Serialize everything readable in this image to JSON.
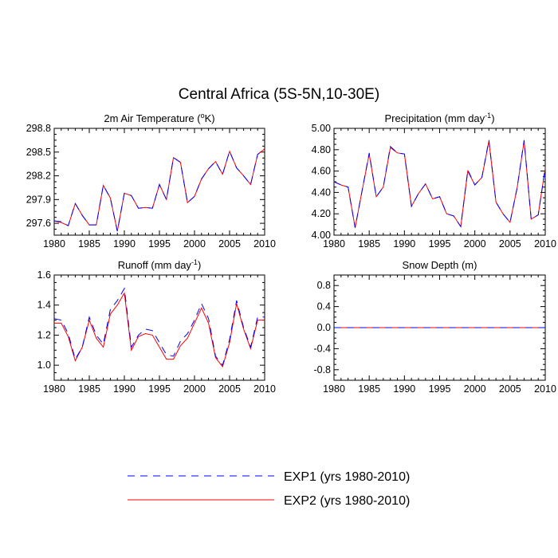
{
  "title": "Central Africa (5S-5N,10-30E)",
  "legend": [
    {
      "label": "EXP1 (yrs 1980-2010)",
      "color": "#0000ff",
      "dash": "dashed"
    },
    {
      "label": "EXP2 (yrs 1980-2010)",
      "color": "#ff0000",
      "dash": "solid"
    }
  ],
  "chart_data": [
    {
      "type": "line",
      "title": "2m Air Temperature (°K)",
      "title_main": "2m Air Temperature (",
      "title_sup": "o",
      "title_end": "K)",
      "xlim": [
        1980,
        2010
      ],
      "ylim": [
        297.45,
        298.8
      ],
      "xticks": [
        1980,
        1985,
        1990,
        1995,
        2000,
        2005,
        2010
      ],
      "xtick_labels": [
        "1980",
        "1985",
        "1990",
        "1995",
        "2000",
        "2005",
        "2010"
      ],
      "yticks": [
        297.6,
        297.9,
        298.2,
        298.5,
        298.8
      ],
      "ytick_labels": [
        "297.6",
        "297.9",
        "298.2",
        "298.5",
        "298.8"
      ],
      "x": [
        1980,
        1981,
        1982,
        1983,
        1984,
        1985,
        1986,
        1987,
        1988,
        1989,
        1990,
        1991,
        1992,
        1993,
        1994,
        1995,
        1996,
        1997,
        1998,
        1999,
        2000,
        2001,
        2002,
        2003,
        2004,
        2005,
        2006,
        2007,
        2008,
        2009,
        2010
      ],
      "series": [
        {
          "name": "EXP1 (yrs 1980-2010)",
          "values": [
            297.63,
            297.62,
            297.57,
            297.85,
            297.7,
            297.58,
            297.58,
            298.08,
            297.92,
            297.5,
            297.98,
            297.95,
            297.79,
            297.8,
            297.79,
            298.09,
            297.9,
            298.43,
            298.37,
            297.86,
            297.94,
            298.16,
            298.29,
            298.38,
            298.22,
            298.51,
            298.3,
            298.2,
            298.09,
            298.47,
            298.54
          ]
        },
        {
          "name": "EXP2 (yrs 1980-2010)",
          "values": [
            297.63,
            297.61,
            297.57,
            297.85,
            297.7,
            297.58,
            297.58,
            298.08,
            297.92,
            297.5,
            297.98,
            297.95,
            297.79,
            297.8,
            297.79,
            298.09,
            297.9,
            298.43,
            298.37,
            297.86,
            297.94,
            298.16,
            298.29,
            298.38,
            298.22,
            298.51,
            298.3,
            298.2,
            298.09,
            298.47,
            298.54
          ]
        }
      ]
    },
    {
      "type": "line",
      "title": "Precipitation (mm day-1)",
      "title_main": "Precipitation (mm day",
      "title_sup": "-1",
      "title_end": ")",
      "xlim": [
        1980,
        2010
      ],
      "ylim": [
        4.0,
        5.0
      ],
      "xticks": [
        1980,
        1985,
        1990,
        1995,
        2000,
        2005,
        2010
      ],
      "xtick_labels": [
        "1980",
        "1985",
        "1990",
        "1995",
        "2000",
        "2005",
        "2010"
      ],
      "yticks": [
        4.0,
        4.2,
        4.4,
        4.6,
        4.8,
        5.0
      ],
      "ytick_labels": [
        "4.00",
        "4.20",
        "4.40",
        "4.60",
        "4.80",
        "5.00"
      ],
      "x": [
        1980,
        1981,
        1982,
        1983,
        1984,
        1985,
        1986,
        1987,
        1988,
        1989,
        1990,
        1991,
        1992,
        1993,
        1994,
        1995,
        1996,
        1997,
        1998,
        1999,
        2000,
        2001,
        2002,
        2003,
        2004,
        2005,
        2006,
        2007,
        2008,
        2009,
        2010
      ],
      "series": [
        {
          "name": "EXP1 (yrs 1980-2010)",
          "values": [
            4.5,
            4.47,
            4.45,
            4.07,
            4.42,
            4.77,
            4.36,
            4.45,
            4.83,
            4.77,
            4.76,
            4.27,
            4.39,
            4.48,
            4.34,
            4.36,
            4.2,
            4.18,
            4.08,
            4.61,
            4.47,
            4.54,
            4.89,
            4.31,
            4.2,
            4.12,
            4.44,
            4.89,
            4.15,
            4.19,
            4.63
          ]
        },
        {
          "name": "EXP2 (yrs 1980-2010)",
          "values": [
            4.5,
            4.47,
            4.45,
            4.07,
            4.42,
            4.76,
            4.36,
            4.45,
            4.82,
            4.77,
            4.76,
            4.27,
            4.39,
            4.48,
            4.34,
            4.36,
            4.2,
            4.18,
            4.08,
            4.6,
            4.47,
            4.54,
            4.88,
            4.31,
            4.2,
            4.12,
            4.44,
            4.88,
            4.15,
            4.19,
            4.63
          ]
        }
      ]
    },
    {
      "type": "line",
      "title": "Runoff (mm day-1)",
      "title_main": "Runoff (mm day",
      "title_sup": "-1",
      "title_end": ")",
      "xlim": [
        1980,
        2010
      ],
      "ylim": [
        0.9,
        1.6
      ],
      "xticks": [
        1980,
        1985,
        1990,
        1995,
        2000,
        2005,
        2010
      ],
      "xtick_labels": [
        "1980",
        "1985",
        "1990",
        "1995",
        "2000",
        "2005",
        "2010"
      ],
      "yticks": [
        1.0,
        1.2,
        1.4,
        1.6
      ],
      "ytick_labels": [
        "1.0",
        "1.2",
        "1.4",
        "1.6"
      ],
      "x": [
        1980,
        1981,
        1982,
        1983,
        1984,
        1985,
        1986,
        1987,
        1988,
        1989,
        1990,
        1991,
        1992,
        1993,
        1994,
        1995,
        1996,
        1997,
        1998,
        1999,
        2000,
        2001,
        2002,
        2003,
        2004,
        2005,
        2006,
        2007,
        2008,
        2009,
        2010
      ],
      "series": [
        {
          "name": "EXP1 (yrs 1980-2010)",
          "values": [
            1.31,
            1.3,
            1.21,
            1.04,
            1.12,
            1.32,
            1.2,
            1.14,
            1.37,
            1.43,
            1.51,
            1.12,
            1.2,
            1.24,
            1.23,
            1.15,
            1.07,
            1.06,
            1.16,
            1.21,
            1.3,
            1.41,
            1.31,
            1.06,
            1.0,
            1.17,
            1.43,
            1.25,
            1.12,
            1.32,
            1.32
          ]
        },
        {
          "name": "EXP2 (yrs 1980-2010)",
          "values": [
            1.28,
            1.28,
            1.19,
            1.03,
            1.12,
            1.3,
            1.18,
            1.12,
            1.34,
            1.4,
            1.48,
            1.1,
            1.19,
            1.21,
            1.2,
            1.12,
            1.04,
            1.04,
            1.13,
            1.18,
            1.28,
            1.38,
            1.28,
            1.05,
            0.99,
            1.15,
            1.41,
            1.24,
            1.11,
            1.3,
            1.3
          ]
        }
      ]
    },
    {
      "type": "line",
      "title": "Snow Depth (m)",
      "title_main": "Snow Depth (m)",
      "title_sup": "",
      "title_end": "",
      "xlim": [
        1980,
        2010
      ],
      "ylim": [
        -1.0,
        1.0
      ],
      "xticks": [
        1980,
        1985,
        1990,
        1995,
        2000,
        2005,
        2010
      ],
      "xtick_labels": [
        "1980",
        "1985",
        "1990",
        "1995",
        "2000",
        "2005",
        "2010"
      ],
      "yticks": [
        -0.8,
        -0.4,
        0.0,
        0.4,
        0.8
      ],
      "ytick_labels": [
        "-0.8",
        "-0.4",
        "0.0",
        "0.4",
        "0.8"
      ],
      "x": [
        1980,
        1981,
        1982,
        1983,
        1984,
        1985,
        1986,
        1987,
        1988,
        1989,
        1990,
        1991,
        1992,
        1993,
        1994,
        1995,
        1996,
        1997,
        1998,
        1999,
        2000,
        2001,
        2002,
        2003,
        2004,
        2005,
        2006,
        2007,
        2008,
        2009,
        2010
      ],
      "series": [
        {
          "name": "EXP1 (yrs 1980-2010)",
          "values": [
            0,
            0,
            0,
            0,
            0,
            0,
            0,
            0,
            0,
            0,
            0,
            0,
            0,
            0,
            0,
            0,
            0,
            0,
            0,
            0,
            0,
            0,
            0,
            0,
            0,
            0,
            0,
            0,
            0,
            0,
            0
          ]
        },
        {
          "name": "EXP2 (yrs 1980-2010)",
          "values": [
            0,
            0,
            0,
            0,
            0,
            0,
            0,
            0,
            0,
            0,
            0,
            0,
            0,
            0,
            0,
            0,
            0,
            0,
            0,
            0,
            0,
            0,
            0,
            0,
            0,
            0,
            0,
            0,
            0,
            0,
            0
          ]
        }
      ]
    }
  ]
}
